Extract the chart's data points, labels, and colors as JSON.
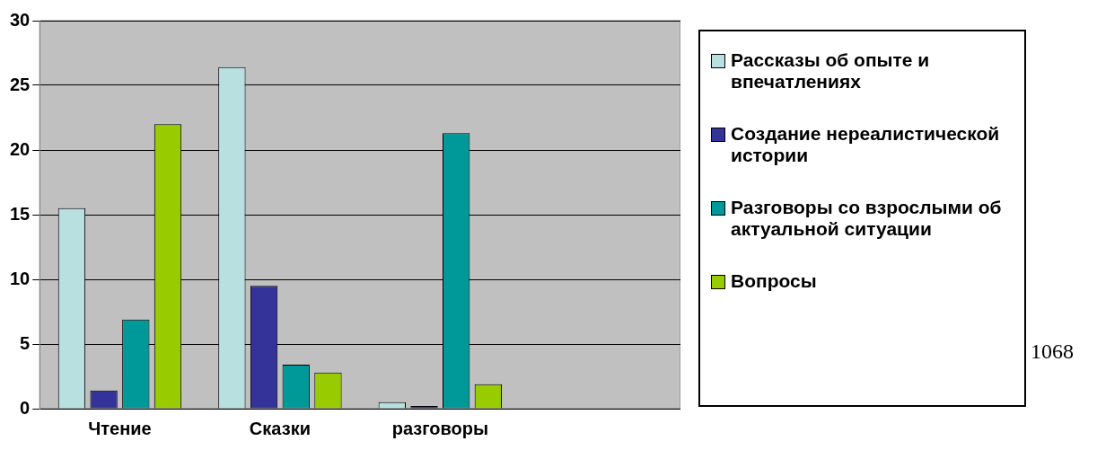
{
  "chart_data": {
    "type": "bar",
    "categories": [
      "Чтение",
      "Сказки",
      "разговоры",
      null
    ],
    "series": [
      {
        "name": "Рассказы об опыте и впечатлениях",
        "color": "#b8e0e0",
        "values": [
          15.5,
          26.4,
          0.5,
          null
        ]
      },
      {
        "name": "Создание нереалистической истории",
        "color": "#333399",
        "values": [
          1.4,
          9.5,
          0.2,
          null
        ]
      },
      {
        "name": "Разговоры со взрослыми об актуальной ситуации",
        "color": "#009999",
        "values": [
          6.9,
          3.4,
          21.3,
          null
        ]
      },
      {
        "name": "Вопросы",
        "color": "#99cc00",
        "values": [
          22,
          2.8,
          1.9,
          null
        ]
      }
    ],
    "ylim": [
      0,
      30
    ],
    "yticks": [
      0,
      5,
      10,
      15,
      20,
      25,
      30
    ],
    "grid": "y",
    "legend": "right",
    "annotations": [
      "1068"
    ]
  }
}
